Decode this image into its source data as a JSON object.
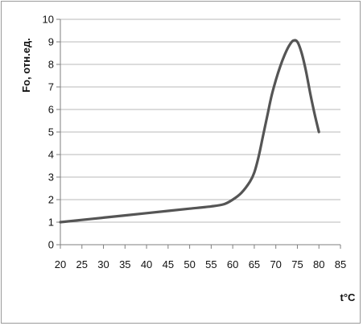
{
  "chart_data": {
    "type": "line",
    "xlabel": "t°C",
    "ylabel": "Fo, отн.ед.",
    "xlim": [
      20,
      85
    ],
    "ylim": [
      0,
      10
    ],
    "x_ticks": [
      "20",
      "25",
      "30",
      "35",
      "40",
      "45",
      "50",
      "55",
      "60",
      "65",
      "70",
      "75",
      "80",
      "85"
    ],
    "y_ticks": [
      "0",
      "1",
      "2",
      "3",
      "4",
      "5",
      "6",
      "7",
      "8",
      "9",
      "10"
    ],
    "grid": true,
    "legend": "none",
    "series": [
      {
        "color": "#555555",
        "x": [
          20,
          25,
          30,
          35,
          40,
          45,
          50,
          55,
          58,
          60,
          62,
          64,
          65,
          66,
          67,
          68,
          69,
          70,
          71,
          72,
          73,
          74,
          75,
          76,
          77,
          78,
          79,
          80
        ],
        "y": [
          1.0,
          1.1,
          1.2,
          1.3,
          1.4,
          1.5,
          1.6,
          1.7,
          1.8,
          2.0,
          2.3,
          2.8,
          3.2,
          3.9,
          4.8,
          5.7,
          6.6,
          7.3,
          7.9,
          8.4,
          8.8,
          9.05,
          9.0,
          8.5,
          7.7,
          6.7,
          5.8,
          5.0
        ]
      }
    ]
  }
}
